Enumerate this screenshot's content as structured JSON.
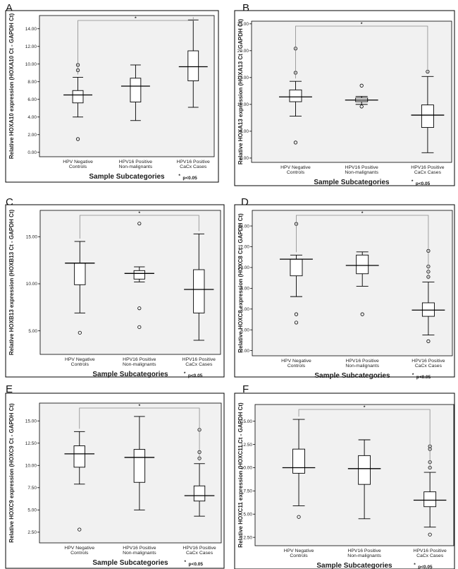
{
  "chart_data": [
    {
      "type": "boxplot",
      "label": "A",
      "ylabel": "Relative HOXA10 expression (HOXA10 Ct - GAPDH Ct)",
      "xlabel": "Sample Subcategories",
      "categories": [
        [
          "HPV Negative",
          "Controls"
        ],
        [
          "HPV16 Positive",
          "Non-malignants"
        ],
        [
          "HPV16 Positive",
          "CaCx Cases"
        ]
      ],
      "ylim": [
        -0.5,
        15.5
      ],
      "yticks": [
        "0.00",
        "2.00",
        "4.00",
        "6.00",
        "8.00",
        "10.00",
        "12.00",
        "14.00"
      ],
      "ytick_values": [
        0,
        2,
        4,
        6,
        8,
        10,
        12,
        14
      ],
      "boxes": [
        {
          "whisker_low": 4.0,
          "q1": 5.6,
          "median": 6.5,
          "q3": 7.0,
          "whisker_high": 8.5,
          "outliers": [
            1.5,
            9.3,
            9.9
          ]
        },
        {
          "whisker_low": 3.6,
          "q1": 5.7,
          "median": 7.5,
          "q3": 8.4,
          "whisker_high": 9.9,
          "outliers": []
        },
        {
          "whisker_low": 5.1,
          "q1": 8.1,
          "median": 9.7,
          "q3": 11.5,
          "whisker_high": 15.0,
          "outliers": []
        }
      ],
      "significance": "*",
      "p_note": "p<0.05",
      "p_star": "*"
    },
    {
      "type": "boxplot",
      "label": "B",
      "ylabel": "Relative HOXA13 expression (HOXA13 Ct - GAPDH Ct)",
      "xlabel": "Sample Subcategories",
      "categories": [
        [
          "HPV Negative",
          "Controls"
        ],
        [
          "HPV16 Positive",
          "Non-malignants"
        ],
        [
          "HPV16 Positive",
          "CaCx Cases"
        ]
      ],
      "ylim": [
        -0.8,
        25.5
      ],
      "yticks": [
        "0.00",
        "5.00",
        "10.00",
        "15.00",
        "20.00",
        "25.00"
      ],
      "ytick_values": [
        0,
        5,
        10,
        15,
        20,
        25
      ],
      "boxes": [
        {
          "whisker_low": 7.8,
          "q1": 10.5,
          "median": 11.4,
          "q3": 12.7,
          "whisker_high": 14.3,
          "outliers": [
            2.9,
            15.9,
            20.4
          ]
        },
        {
          "whisker_low": 10.0,
          "q1": 10.5,
          "median": 10.8,
          "q3": 11.2,
          "whisker_high": 11.5,
          "outliers": [
            9.6,
            13.5
          ]
        },
        {
          "whisker_low": 1.0,
          "q1": 5.7,
          "median": 8.0,
          "q3": 9.9,
          "whisker_high": 15.2,
          "outliers": [
            16.1
          ]
        }
      ],
      "significance": "*",
      "p_note": "p<0.05",
      "p_star": "*"
    },
    {
      "type": "boxplot",
      "label": "C",
      "ylabel": "Relative HOXB13 expression (HOXB13 Ct - GAPDH Ct)",
      "xlabel": "Sample Subcategories",
      "categories": [
        [
          "HPV Negative",
          "Controls"
        ],
        [
          "HPV16 Positive",
          "Non-malignants"
        ],
        [
          "HPV16 Positive",
          "CaCx Cases"
        ]
      ],
      "ylim": [
        2.5,
        17.8
      ],
      "yticks": [
        "5.00",
        "10.00",
        "15.00"
      ],
      "ytick_values": [
        5,
        10,
        15
      ],
      "boxes": [
        {
          "whisker_low": 6.9,
          "q1": 9.9,
          "median": 12.2,
          "q3": 12.2,
          "whisker_high": 14.5,
          "outliers": [
            4.8
          ]
        },
        {
          "whisker_low": 10.2,
          "q1": 10.5,
          "median": 11.1,
          "q3": 11.4,
          "whisker_high": 11.8,
          "outliers": [
            5.4,
            7.4,
            16.4
          ]
        },
        {
          "whisker_low": 4.0,
          "q1": 6.9,
          "median": 9.4,
          "q3": 11.5,
          "whisker_high": 15.3,
          "outliers": []
        }
      ],
      "significance": "*",
      "p_note": "p<0.05",
      "p_star": "*"
    },
    {
      "type": "boxplot",
      "label": "D",
      "ylabel": "Relative HOXC8 expression (HOXC8 Ct - GAPDH Ct)",
      "xlabel": "Sample Subcategories",
      "categories": [
        [
          "HPV Negative",
          "Controls"
        ],
        [
          "HPV16 Positive",
          "Non-malignants"
        ],
        [
          "HPV16 Positive",
          "CaCx Cases"
        ]
      ],
      "ylim": [
        1.5,
        15.5
      ],
      "yticks": [
        "2.00",
        "4.00",
        "6.00",
        "8.00",
        "10.00",
        "12.00",
        "14.00"
      ],
      "ytick_values": [
        2,
        4,
        6,
        8,
        10,
        12,
        14
      ],
      "boxes": [
        {
          "whisker_low": 7.2,
          "q1": 9.2,
          "median": 10.8,
          "q3": 10.8,
          "whisker_high": 11.2,
          "outliers": [
            4.7,
            5.5,
            14.2
          ]
        },
        {
          "whisker_low": 8.2,
          "q1": 9.4,
          "median": 10.2,
          "q3": 11.2,
          "whisker_high": 11.5,
          "outliers": [
            5.5
          ]
        },
        {
          "whisker_low": 3.5,
          "q1": 5.3,
          "median": 5.9,
          "q3": 6.6,
          "whisker_high": 8.6,
          "outliers": [
            2.9,
            9.1,
            9.6,
            10.1,
            11.6
          ]
        }
      ],
      "significance": "*",
      "p_note": "p<0.05",
      "p_star": "*"
    },
    {
      "type": "boxplot",
      "label": "E",
      "ylabel": "Relative HOXC9 expression (HOXC9 Ct - GAPDH Ct)",
      "xlabel": "Sample Subcategories",
      "categories": [
        [
          "HPV Negative",
          "Controls"
        ],
        [
          "HPV16 Positive",
          "Non-malignants"
        ],
        [
          "HPV16 Positive",
          "CaCx Cases"
        ]
      ],
      "ylim": [
        1.3,
        17.0
      ],
      "yticks": [
        "2.50",
        "5.00",
        "7.50",
        "10.00",
        "12.50",
        "15.00"
      ],
      "ytick_values": [
        2.5,
        5,
        7.5,
        10,
        12.5,
        15
      ],
      "boxes": [
        {
          "whisker_low": 7.9,
          "q1": 9.8,
          "median": 11.3,
          "q3": 12.2,
          "whisker_high": 13.8,
          "outliers": [
            2.8
          ]
        },
        {
          "whisker_low": 5.0,
          "q1": 8.1,
          "median": 10.9,
          "q3": 11.8,
          "whisker_high": 15.5,
          "outliers": []
        },
        {
          "whisker_low": 4.3,
          "q1": 6.0,
          "median": 6.6,
          "q3": 7.7,
          "whisker_high": 10.2,
          "outliers": [
            10.8,
            11.5,
            14.0
          ]
        }
      ],
      "significance": "*",
      "p_note": "p<0.05",
      "p_star": "*"
    },
    {
      "type": "boxplot",
      "label": "F",
      "ylabel": "Relative HOXC11 expression (HOXC11 Ct - GAPDH Ct)",
      "xlabel": "Sample Subcategories",
      "categories": [
        [
          "HPV Negative",
          "Controls"
        ],
        [
          "HPV16 Positive",
          "Non-malignants"
        ],
        [
          "HPV16 Positive",
          "CaCx Cases"
        ]
      ],
      "ylim": [
        1.6,
        16.8
      ],
      "yticks": [
        "2.50",
        "5.00",
        "7.50",
        "10.00",
        "12.50",
        "15.00"
      ],
      "ytick_values": [
        2.5,
        5,
        7.5,
        10,
        12.5,
        15
      ],
      "boxes": [
        {
          "whisker_low": 5.9,
          "q1": 9.4,
          "median": 10.0,
          "q3": 12.0,
          "whisker_high": 15.2,
          "outliers": [
            4.7
          ]
        },
        {
          "whisker_low": 4.5,
          "q1": 8.2,
          "median": 9.9,
          "q3": 11.3,
          "whisker_high": 13.0,
          "outliers": []
        },
        {
          "whisker_low": 3.6,
          "q1": 5.8,
          "median": 6.5,
          "q3": 7.4,
          "whisker_high": 9.5,
          "outliers": [
            2.8,
            10.0,
            10.6,
            12.0,
            12.3
          ]
        }
      ],
      "significance": "*",
      "p_note": "p<0.05",
      "p_star": "*"
    }
  ]
}
